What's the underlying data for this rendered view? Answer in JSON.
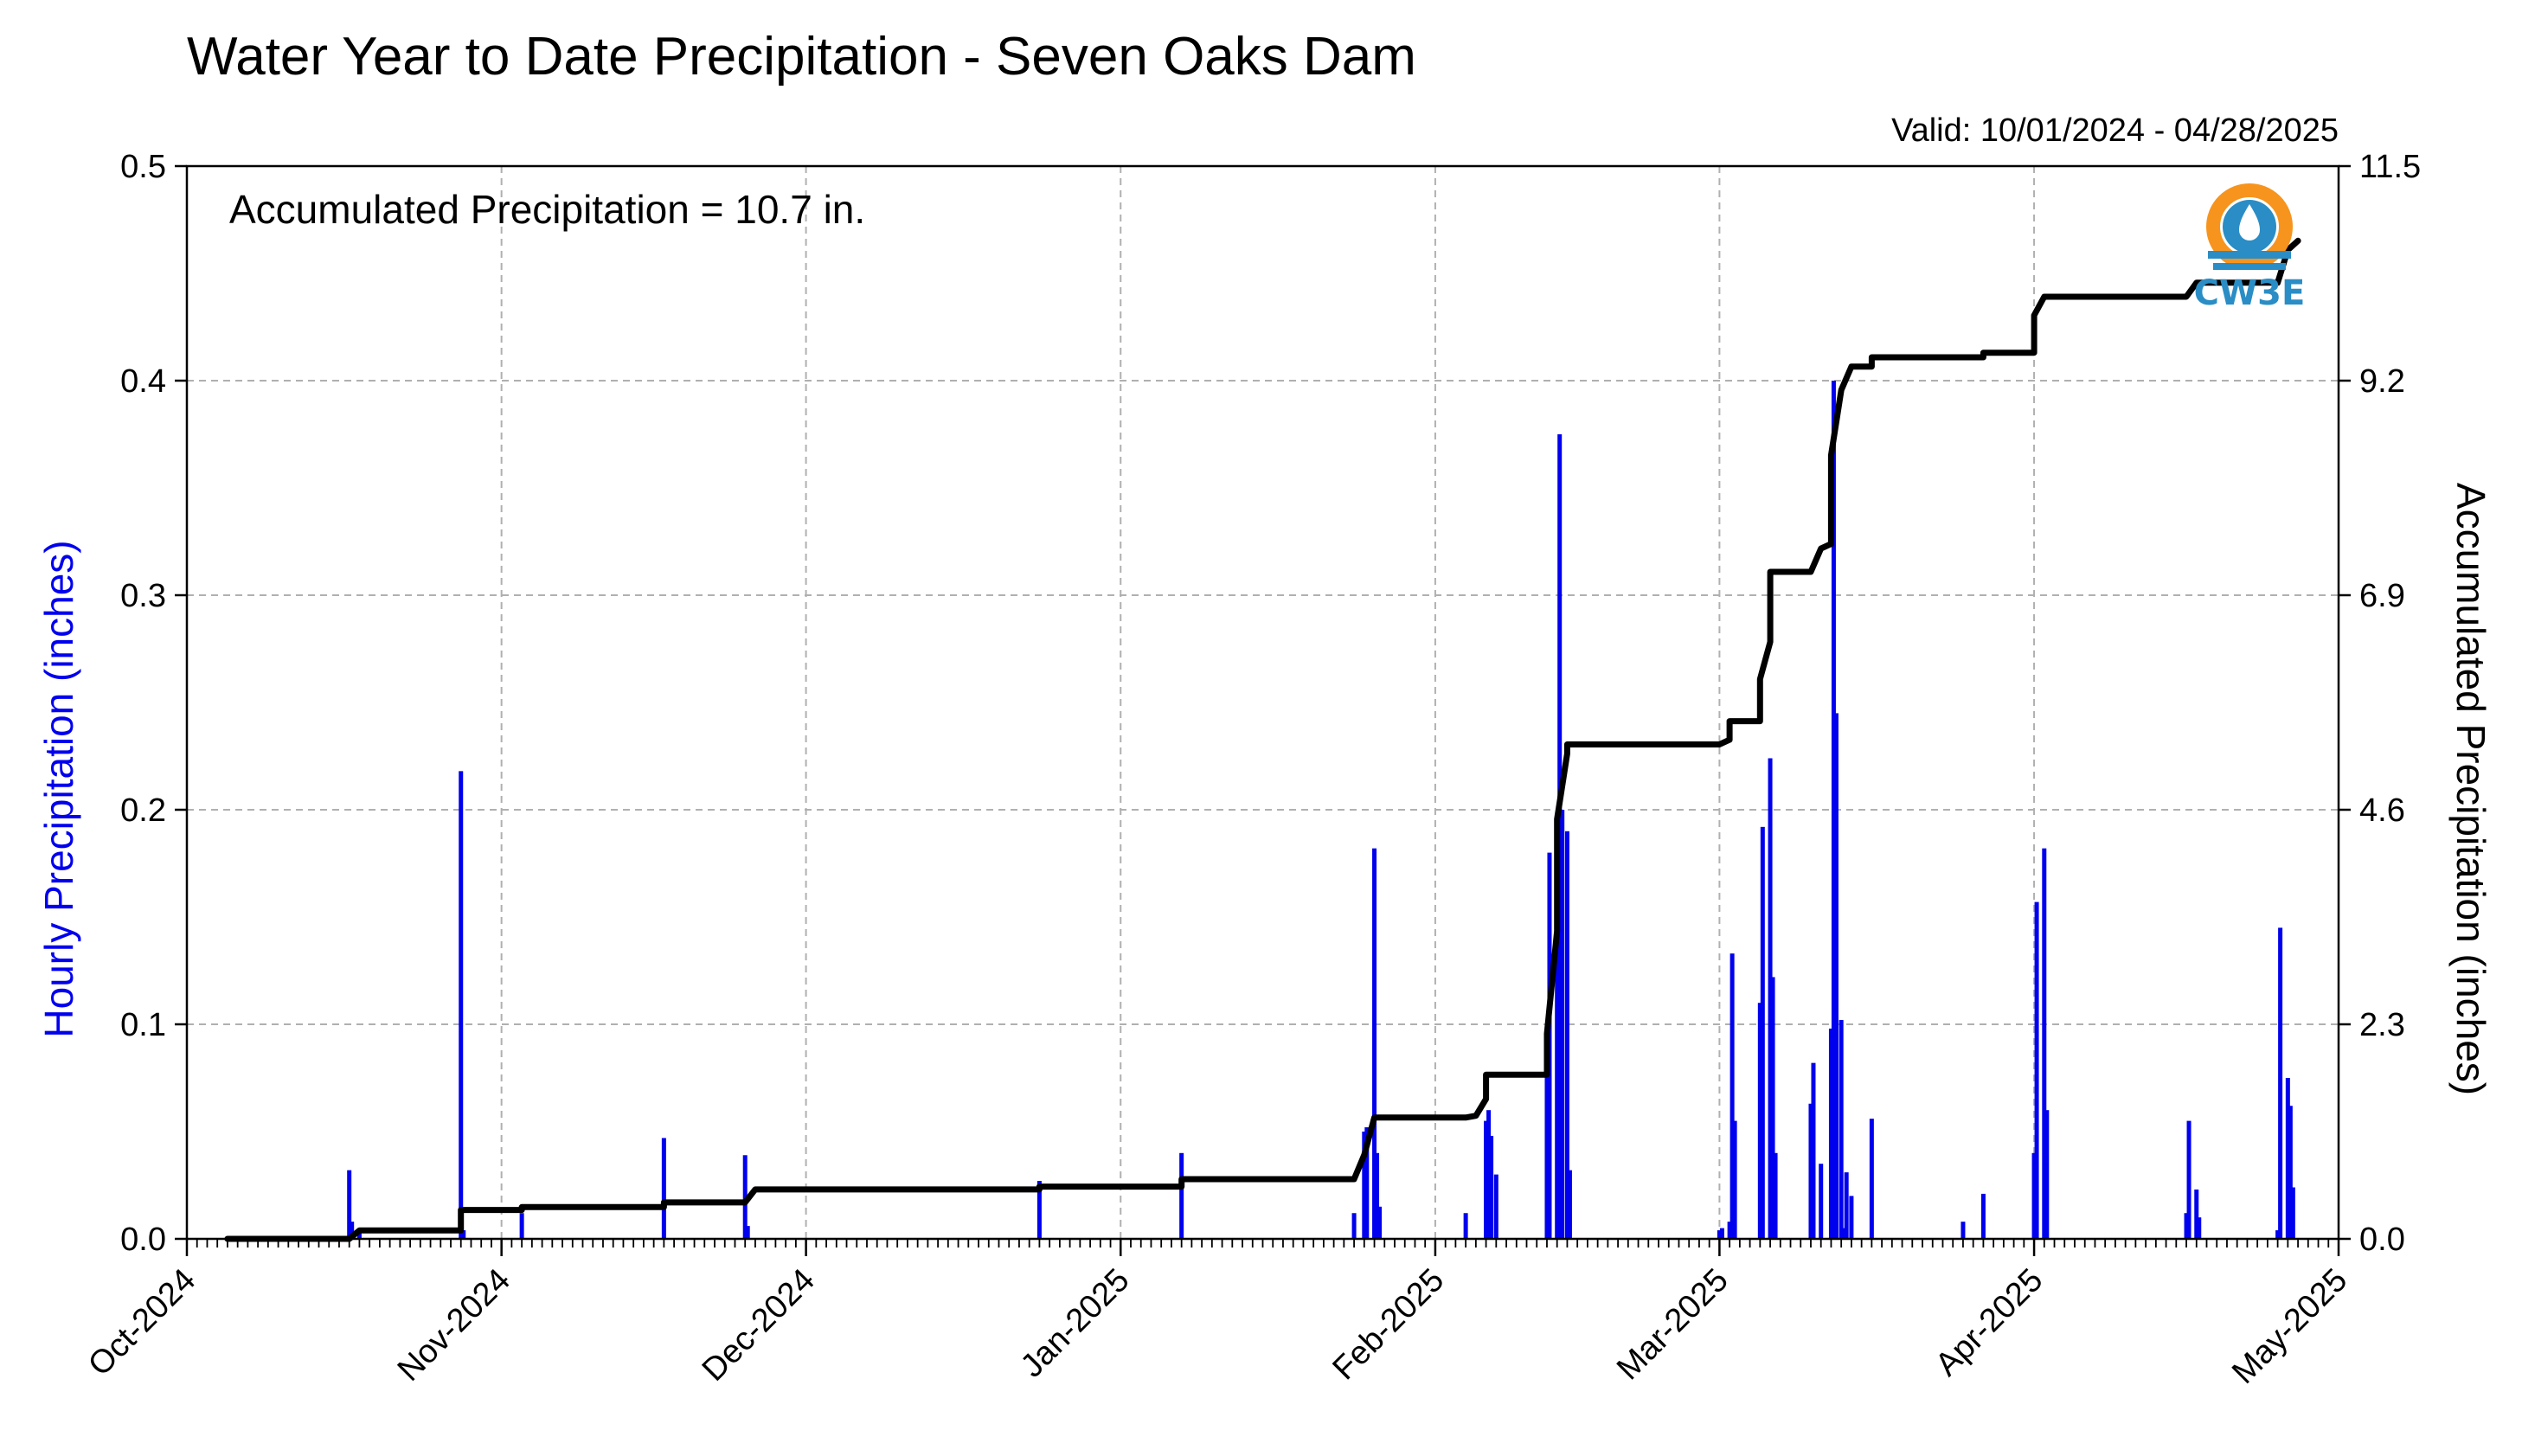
{
  "chart_data": {
    "type": "bar",
    "title": "Water Year to Date Precipitation - Seven Oaks Dam",
    "subtitle": "Valid: 10/01/2024 - 04/28/2025",
    "annotation": "Accumulated Precipitation = 10.7 in.",
    "logo_text": "CW3E",
    "ylabel_left": "Hourly Precipitation (inches)",
    "ylabel_right": "Accumulated Precipitation (inches)",
    "x_range": [
      "2024-10-01",
      "2025-05-01"
    ],
    "x_ticks": [
      {
        "date": "2024-10-01",
        "label": "Oct-2024"
      },
      {
        "date": "2024-11-01",
        "label": "Nov-2024"
      },
      {
        "date": "2024-12-01",
        "label": "Dec-2024"
      },
      {
        "date": "2025-01-01",
        "label": "Jan-2025"
      },
      {
        "date": "2025-02-01",
        "label": "Feb-2025"
      },
      {
        "date": "2025-03-01",
        "label": "Mar-2025"
      },
      {
        "date": "2025-04-01",
        "label": "Apr-2025"
      },
      {
        "date": "2025-05-01",
        "label": "May-2025"
      }
    ],
    "ylim_left": [
      0,
      0.5
    ],
    "yticks_left": [
      "0.0",
      "0.1",
      "0.2",
      "0.3",
      "0.4",
      "0.5"
    ],
    "ylim_right": [
      0,
      11.5
    ],
    "yticks_right": [
      "0.0",
      "2.3",
      "4.6",
      "6.9",
      "9.2",
      "11.5"
    ],
    "grid": true,
    "colors": {
      "hourly": "#0000ee",
      "accumulated": "#000000",
      "ylabel_left": "#0000ee",
      "logo_orange": "#f7941d",
      "logo_blue": "#2a8dc5"
    },
    "series": [
      {
        "name": "Hourly Precipitation",
        "type": "bar",
        "points": [
          [
            "2024-10-17",
            0.032
          ],
          [
            "2024-10-17",
            0.008
          ],
          [
            "2024-10-18",
            0.004
          ],
          [
            "2024-10-28",
            0.218
          ],
          [
            "2024-10-28",
            0.004
          ],
          [
            "2024-11-03",
            0.012
          ],
          [
            "2024-11-17",
            0.047
          ],
          [
            "2024-11-25",
            0.039
          ],
          [
            "2024-11-25",
            0.006
          ],
          [
            "2024-12-24",
            0.027
          ],
          [
            "2025-01-07",
            0.04
          ],
          [
            "2025-01-24",
            0.012
          ],
          [
            "2025-01-25",
            0.05
          ],
          [
            "2025-01-25",
            0.052
          ],
          [
            "2025-01-26",
            0.182
          ],
          [
            "2025-01-26",
            0.04
          ],
          [
            "2025-01-26",
            0.015
          ],
          [
            "2025-02-04",
            0.012
          ],
          [
            "2025-02-06",
            0.055
          ],
          [
            "2025-02-06",
            0.06
          ],
          [
            "2025-02-06",
            0.048
          ],
          [
            "2025-02-07",
            0.03
          ],
          [
            "2025-02-12",
            0.085
          ],
          [
            "2025-02-12",
            0.18
          ],
          [
            "2025-02-13",
            0.15
          ],
          [
            "2025-02-13",
            0.375
          ],
          [
            "2025-02-13",
            0.2
          ],
          [
            "2025-02-14",
            0.19
          ],
          [
            "2025-02-14",
            0.032
          ],
          [
            "2025-03-01",
            0.004
          ],
          [
            "2025-03-01",
            0.005
          ],
          [
            "2025-03-02",
            0.008
          ],
          [
            "2025-03-02",
            0.133
          ],
          [
            "2025-03-02",
            0.055
          ],
          [
            "2025-03-05",
            0.11
          ],
          [
            "2025-03-05",
            0.192
          ],
          [
            "2025-03-06",
            0.224
          ],
          [
            "2025-03-06",
            0.122
          ],
          [
            "2025-03-06",
            0.04
          ],
          [
            "2025-03-10",
            0.063
          ],
          [
            "2025-03-10",
            0.082
          ],
          [
            "2025-03-11",
            0.035
          ],
          [
            "2025-03-12",
            0.098
          ],
          [
            "2025-03-12",
            0.4
          ],
          [
            "2025-03-12",
            0.245
          ],
          [
            "2025-03-13",
            0.102
          ],
          [
            "2025-03-13",
            0.005
          ],
          [
            "2025-03-13",
            0.031
          ],
          [
            "2025-03-14",
            0.02
          ],
          [
            "2025-03-16",
            0.056
          ],
          [
            "2025-03-25",
            0.008
          ],
          [
            "2025-03-27",
            0.021
          ],
          [
            "2025-04-01",
            0.04
          ],
          [
            "2025-04-01",
            0.157
          ],
          [
            "2025-04-02",
            0.182
          ],
          [
            "2025-04-02",
            0.06
          ],
          [
            "2025-04-16",
            0.012
          ],
          [
            "2025-04-16",
            0.055
          ],
          [
            "2025-04-17",
            0.023
          ],
          [
            "2025-04-17",
            0.01
          ],
          [
            "2025-04-25",
            0.004
          ],
          [
            "2025-04-25",
            0.145
          ],
          [
            "2025-04-26",
            0.075
          ],
          [
            "2025-04-26",
            0.062
          ],
          [
            "2025-04-26",
            0.024
          ]
        ]
      },
      {
        "name": "Accumulated Precipitation",
        "type": "line",
        "points": [
          [
            "2024-10-05",
            0.0
          ],
          [
            "2024-10-17",
            0.0
          ],
          [
            "2024-10-18",
            0.09
          ],
          [
            "2024-10-28",
            0.09
          ],
          [
            "2024-10-28",
            0.31
          ],
          [
            "2024-11-03",
            0.31
          ],
          [
            "2024-11-03",
            0.34
          ],
          [
            "2024-11-17",
            0.34
          ],
          [
            "2024-11-17",
            0.39
          ],
          [
            "2024-11-25",
            0.39
          ],
          [
            "2024-11-26",
            0.53
          ],
          [
            "2024-12-24",
            0.53
          ],
          [
            "2024-12-24",
            0.56
          ],
          [
            "2025-01-07",
            0.56
          ],
          [
            "2025-01-07",
            0.64
          ],
          [
            "2025-01-24",
            0.64
          ],
          [
            "2025-01-25",
            0.9
          ],
          [
            "2025-01-26",
            1.3
          ],
          [
            "2025-02-04",
            1.3
          ],
          [
            "2025-02-05",
            1.32
          ],
          [
            "2025-02-06",
            1.5
          ],
          [
            "2025-02-06",
            1.76
          ],
          [
            "2025-02-12",
            1.76
          ],
          [
            "2025-02-12",
            2.2
          ],
          [
            "2025-02-13",
            3.3
          ],
          [
            "2025-02-13",
            4.5
          ],
          [
            "2025-02-14",
            5.2
          ],
          [
            "2025-02-14",
            5.3
          ],
          [
            "2025-03-01",
            5.3
          ],
          [
            "2025-03-02",
            5.35
          ],
          [
            "2025-03-02",
            5.55
          ],
          [
            "2025-03-05",
            5.55
          ],
          [
            "2025-03-05",
            6.0
          ],
          [
            "2025-03-06",
            6.4
          ],
          [
            "2025-03-06",
            6.9
          ],
          [
            "2025-03-06",
            7.15
          ],
          [
            "2025-03-10",
            7.15
          ],
          [
            "2025-03-11",
            7.4
          ],
          [
            "2025-03-12",
            7.45
          ],
          [
            "2025-03-12",
            7.6
          ],
          [
            "2025-03-12",
            8.4
          ],
          [
            "2025-03-13",
            9.1
          ],
          [
            "2025-03-14",
            9.35
          ],
          [
            "2025-03-16",
            9.35
          ],
          [
            "2025-03-16",
            9.45
          ],
          [
            "2025-03-27",
            9.45
          ],
          [
            "2025-03-27",
            9.5
          ],
          [
            "2025-04-01",
            9.5
          ],
          [
            "2025-04-01",
            9.9
          ],
          [
            "2025-04-02",
            10.1
          ],
          [
            "2025-04-16",
            10.1
          ],
          [
            "2025-04-17",
            10.25
          ],
          [
            "2025-04-25",
            10.25
          ],
          [
            "2025-04-26",
            10.6
          ],
          [
            "2025-04-27",
            10.7
          ]
        ]
      }
    ]
  }
}
